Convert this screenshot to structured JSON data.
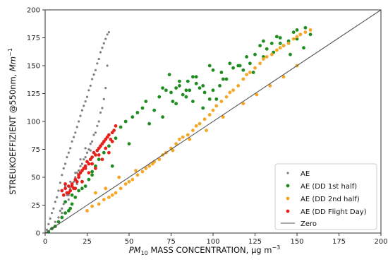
{
  "chart_data": {
    "type": "scatter",
    "xlabel_main": "MASS CONCENTRATION, μg m",
    "xlabel_sym": "PM",
    "xlabel_sub": "10",
    "xlabel_sup": "−3",
    "ylabel_main": "STREUKOEFFIZIENT @550nm, ",
    "ylabel_unit": "Mm",
    "ylabel_sup": "−1",
    "xlim": [
      0,
      200
    ],
    "ylim": [
      0,
      200
    ],
    "xticks": [
      "0",
      "25",
      "50",
      "75",
      "100",
      "125",
      "150",
      "175",
      "200"
    ],
    "yticks": [
      "0",
      "25",
      "50",
      "75",
      "100",
      "125",
      "150",
      "175",
      "200"
    ],
    "grid": false,
    "legend_position": "lower-right",
    "legend": [
      "AE",
      "AE (DD 1st half)",
      "AE (DD 2nd half)",
      "AE (DD Flight Day)",
      "Zero"
    ],
    "colors": {
      "gray": "#808080",
      "green": "#1e8c1e",
      "orange": "#f5a623",
      "red": "#e8201b",
      "line": "#555555"
    },
    "series": [
      {
        "name": "AE",
        "color": "gray",
        "marker": "small",
        "x": [
          1,
          2,
          3,
          4,
          5,
          6,
          7,
          8,
          9,
          10,
          11,
          12,
          13,
          14,
          15,
          16,
          17,
          18,
          19,
          20,
          21,
          22,
          23,
          24,
          25,
          26,
          27,
          28,
          29,
          30,
          31,
          32,
          33,
          34,
          35,
          36,
          37,
          38,
          5,
          8,
          10,
          12,
          14,
          16,
          18,
          20,
          22,
          24,
          26,
          28,
          30,
          32,
          34,
          36,
          6,
          9,
          11,
          13,
          15,
          17,
          19,
          21,
          23,
          25,
          27,
          29,
          31,
          33,
          35,
          37,
          12,
          15,
          18,
          21,
          24,
          10,
          14,
          19,
          23,
          27
        ],
        "y": [
          3,
          8,
          13,
          18,
          22,
          28,
          32,
          38,
          45,
          52,
          58,
          62,
          68,
          72,
          76,
          82,
          86,
          90,
          95,
          100,
          105,
          110,
          114,
          118,
          122,
          128,
          132,
          138,
          142,
          146,
          152,
          156,
          162,
          166,
          170,
          174,
          178,
          180,
          5,
          14,
          22,
          28,
          34,
          42,
          50,
          56,
          62,
          68,
          75,
          82,
          90,
          100,
          112,
          130,
          10,
          20,
          26,
          34,
          40,
          46,
          54,
          60,
          66,
          72,
          80,
          88,
          96,
          108,
          120,
          150,
          42,
          46,
          54,
          66,
          76,
          18,
          30,
          44,
          58,
          74
        ]
      },
      {
        "name": "AE (DD 1st half)",
        "color": "green",
        "marker": "big",
        "x": [
          2,
          4,
          6,
          8,
          10,
          12,
          14,
          15,
          16,
          18,
          20,
          22,
          24,
          26,
          28,
          30,
          32,
          35,
          38,
          42,
          45,
          48,
          52,
          55,
          58,
          60,
          65,
          68,
          72,
          75,
          78,
          80,
          82,
          85,
          88,
          90,
          92,
          95,
          98,
          100,
          102,
          105,
          108,
          110,
          112,
          115,
          118,
          120,
          122,
          125,
          128,
          130,
          132,
          135,
          138,
          140,
          142,
          145,
          148,
          150,
          152,
          155,
          12,
          16,
          22,
          28,
          40,
          50,
          62,
          70,
          78,
          84,
          88,
          94,
          98,
          106,
          116,
          124,
          130,
          136,
          140,
          146,
          150,
          154,
          158,
          70,
          74,
          76,
          80,
          84,
          86,
          90,
          94,
          100,
          104
        ],
        "y": [
          1,
          4,
          6,
          10,
          14,
          18,
          20,
          22,
          26,
          32,
          38,
          40,
          42,
          48,
          55,
          60,
          66,
          72,
          78,
          85,
          95,
          100,
          104,
          108,
          112,
          118,
          110,
          122,
          128,
          126,
          130,
          132,
          124,
          136,
          118,
          140,
          130,
          126,
          150,
          128,
          120,
          144,
          138,
          152,
          148,
          150,
          146,
          158,
          152,
          160,
          168,
          172,
          165,
          170,
          176,
          175,
          168,
          172,
          180,
          182,
          178,
          184,
          28,
          34,
          46,
          52,
          60,
          80,
          98,
          104,
          116,
          128,
          140,
          132,
          120,
          138,
          150,
          144,
          158,
          162,
          170,
          160,
          174,
          166,
          178,
          130,
          142,
          118,
          136,
          122,
          128,
          134,
          112,
          146,
          132
        ]
      },
      {
        "name": "AE (DD 2nd half)",
        "color": "orange",
        "marker": "big",
        "x": [
          25,
          28,
          32,
          35,
          38,
          40,
          42,
          45,
          48,
          50,
          52,
          55,
          58,
          60,
          62,
          65,
          68,
          70,
          72,
          75,
          78,
          80,
          82,
          85,
          88,
          90,
          92,
          95,
          98,
          100,
          102,
          105,
          108,
          110,
          112,
          115,
          118,
          120,
          122,
          125,
          128,
          130,
          132,
          135,
          138,
          140,
          142,
          145,
          148,
          150,
          152,
          155,
          158,
          30,
          36,
          44,
          54,
          64,
          76,
          86,
          96,
          106,
          118,
          126,
          134,
          142,
          150
        ],
        "y": [
          20,
          24,
          26,
          30,
          32,
          34,
          36,
          40,
          44,
          46,
          48,
          52,
          55,
          58,
          60,
          64,
          66,
          70,
          72,
          76,
          80,
          84,
          86,
          88,
          92,
          96,
          98,
          102,
          106,
          110,
          114,
          118,
          122,
          126,
          128,
          132,
          138,
          142,
          144,
          148,
          152,
          156,
          158,
          160,
          164,
          166,
          168,
          170,
          174,
          176,
          178,
          180,
          182,
          36,
          40,
          50,
          56,
          62,
          74,
          84,
          92,
          104,
          116,
          124,
          132,
          140,
          150
        ]
      },
      {
        "name": "AE (DD Flight Day)",
        "color": "red",
        "marker": "big",
        "x": [
          10,
          11,
          12,
          13,
          14,
          15,
          16,
          17,
          18,
          19,
          20,
          21,
          22,
          23,
          24,
          25,
          26,
          27,
          28,
          29,
          30,
          31,
          32,
          33,
          34,
          35,
          36,
          37,
          38,
          39,
          40,
          41,
          42,
          12,
          14,
          16,
          18,
          20,
          22,
          24,
          26,
          28,
          30,
          32,
          34,
          36,
          38,
          40
        ],
        "y": [
          38,
          34,
          40,
          36,
          42,
          38,
          44,
          40,
          48,
          46,
          50,
          54,
          56,
          58,
          60,
          64,
          62,
          66,
          68,
          72,
          70,
          74,
          76,
          78,
          80,
          82,
          84,
          86,
          88,
          84,
          90,
          92,
          96,
          44,
          36,
          42,
          40,
          52,
          46,
          58,
          54,
          62,
          58,
          70,
          66,
          76,
          72,
          82
        ]
      }
    ],
    "zero_line": {
      "name": "Zero",
      "x": [
        0,
        200
      ],
      "y": [
        0,
        200
      ]
    }
  }
}
